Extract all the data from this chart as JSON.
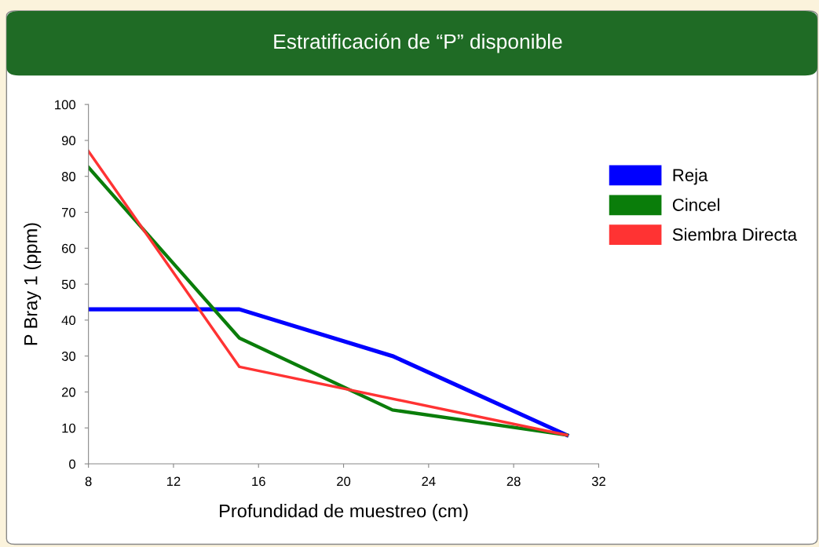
{
  "chart_data": {
    "type": "line",
    "title": "Estratificación de “P” disponible",
    "xlabel": "Profundidad de muestreo (cm)",
    "ylabel": "P Bray 1 (ppm)",
    "xlim": [
      8,
      32
    ],
    "xticks": [
      8,
      12,
      16,
      20,
      24,
      28,
      32
    ],
    "ylim": [
      0,
      100
    ],
    "yticks": [
      0,
      10,
      20,
      30,
      40,
      50,
      60,
      70,
      80,
      90,
      100
    ],
    "grid": false,
    "legend": "right",
    "marker": "none",
    "line_style": "solid",
    "series": [
      {
        "name": "Reja",
        "color": "#0000ff",
        "x": [
          8,
          15.1,
          22.3,
          30.5
        ],
        "values": [
          43,
          43,
          30,
          8
        ]
      },
      {
        "name": "Cincel",
        "color": "#0a7d0a",
        "x": [
          8,
          15.1,
          22.3,
          30.5
        ],
        "values": [
          82.5,
          35,
          15,
          8
        ]
      },
      {
        "name": "Siembra Directa",
        "color": "#ff3333",
        "x": [
          8,
          15.1,
          30.5
        ],
        "values": [
          87,
          27,
          8
        ]
      }
    ]
  }
}
